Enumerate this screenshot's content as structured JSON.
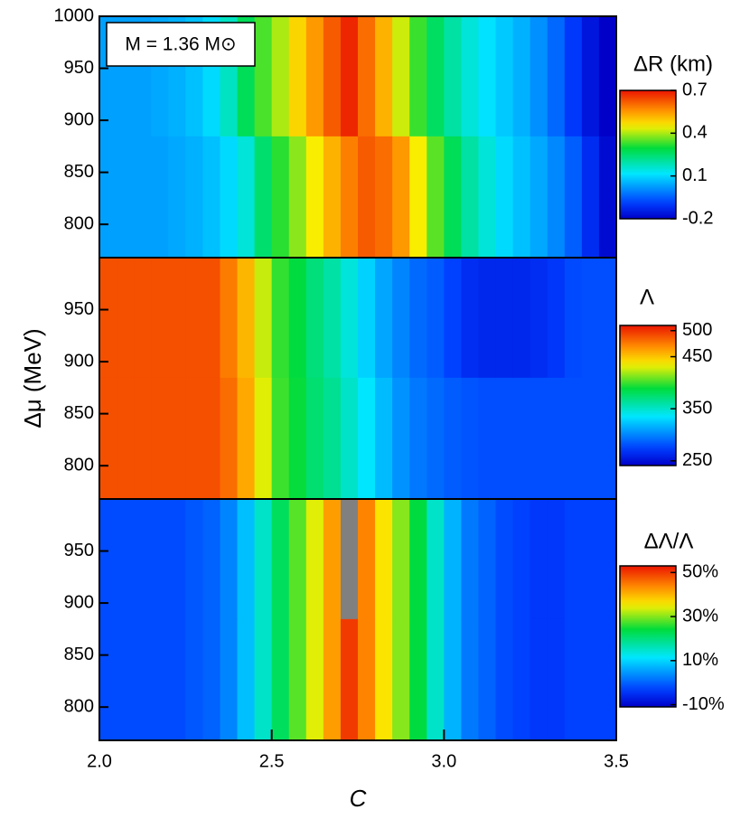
{
  "chart_data": [
    {
      "type": "heatmap",
      "annotation": "M = 1.36 M⊙",
      "colorbar_label": "ΔR (km)",
      "x": [
        2.0,
        2.05,
        2.1,
        2.15,
        2.2,
        2.25,
        2.3,
        2.35,
        2.4,
        2.45,
        2.5,
        2.55,
        2.6,
        2.65,
        2.7,
        2.75,
        2.8,
        2.85,
        2.9,
        2.95,
        3.0,
        3.05,
        3.1,
        3.15,
        3.2,
        3.25,
        3.3,
        3.35,
        3.4,
        3.45,
        3.5
      ],
      "y": [
        768,
        885,
        1000
      ],
      "z": [
        [
          0.03,
          0.03,
          0.03,
          0.03,
          0.04,
          0.05,
          0.07,
          0.1,
          0.15,
          0.25,
          0.32,
          0.38,
          0.45,
          0.52,
          0.58,
          0.62,
          0.6,
          0.55,
          0.45,
          0.35,
          0.27,
          0.2,
          0.15,
          0.1,
          0.07,
          0.04,
          0.0,
          -0.05,
          -0.12,
          -0.18
        ],
        [
          0.03,
          0.03,
          0.03,
          0.04,
          0.05,
          0.07,
          0.1,
          0.17,
          0.27,
          0.34,
          0.4,
          0.48,
          0.55,
          0.62,
          0.68,
          0.6,
          0.52,
          0.42,
          0.33,
          0.26,
          0.2,
          0.15,
          0.11,
          0.08,
          0.05,
          0.01,
          -0.04,
          -0.1,
          -0.16,
          -0.2
        ]
      ],
      "xlim": [
        2.0,
        3.5
      ],
      "ylim": [
        768,
        1000
      ],
      "yticks": [
        800,
        850,
        900,
        950,
        1000
      ],
      "zlim": [
        -0.2,
        0.7
      ],
      "zticks": [
        -0.2,
        0.1,
        0.4,
        0.7
      ]
    },
    {
      "type": "heatmap",
      "colorbar_label": "Λ",
      "ylabel": "Δμ (MeV)",
      "x": [
        2.0,
        2.05,
        2.1,
        2.15,
        2.2,
        2.25,
        2.3,
        2.35,
        2.4,
        2.45,
        2.5,
        2.55,
        2.6,
        2.65,
        2.7,
        2.75,
        2.8,
        2.85,
        2.9,
        2.95,
        3.0,
        3.05,
        3.1,
        3.15,
        3.2,
        3.25,
        3.3,
        3.35,
        3.4,
        3.45,
        3.5
      ],
      "y": [
        768,
        885,
        1000
      ],
      "z": [
        [
          490,
          490,
          490,
          490,
          490,
          490,
          490,
          480,
          460,
          430,
          400,
          390,
          375,
          365,
          350,
          335,
          320,
          305,
          295,
          290,
          285,
          282,
          280,
          280,
          280,
          280,
          280,
          280,
          280,
          280
        ],
        [
          490,
          490,
          490,
          490,
          490,
          490,
          490,
          475,
          455,
          425,
          398,
          388,
          372,
          360,
          345,
          328,
          312,
          300,
          290,
          285,
          275,
          265,
          262,
          262,
          262,
          265,
          270,
          278,
          280,
          280
        ]
      ],
      "xlim": [
        2.0,
        3.5
      ],
      "ylim": [
        768,
        1000
      ],
      "yticks": [
        800,
        850,
        900,
        950
      ],
      "zlim": [
        241,
        510
      ],
      "zticks": [
        250,
        350,
        450,
        500
      ]
    },
    {
      "type": "heatmap",
      "colorbar_label": "ΔΛ/Λ",
      "xlabel": "C",
      "x": [
        2.0,
        2.05,
        2.1,
        2.15,
        2.2,
        2.25,
        2.3,
        2.35,
        2.4,
        2.45,
        2.5,
        2.55,
        2.6,
        2.65,
        2.7,
        2.75,
        2.8,
        2.85,
        2.9,
        2.95,
        3.0,
        3.05,
        3.1,
        3.15,
        3.2,
        3.25,
        3.3,
        3.35,
        3.4,
        3.45,
        3.5
      ],
      "y": [
        768,
        885,
        1000
      ],
      "z": [
        [
          -2,
          -2,
          -2,
          -2,
          -2,
          -1,
          0,
          3,
          8,
          15,
          22,
          28,
          34,
          42,
          50,
          44,
          36,
          30,
          24,
          15,
          7,
          2,
          0,
          -2,
          -3,
          -4,
          -4,
          -3,
          -3,
          -3
        ],
        [
          -2,
          -2,
          -2,
          -2,
          -2,
          -1,
          0,
          3,
          8,
          15,
          22,
          28,
          34,
          42,
          56,
          44,
          36,
          30,
          24,
          15,
          7,
          2,
          0,
          -2,
          -3,
          -4,
          -4,
          -3,
          -3,
          -3
        ]
      ],
      "xlim": [
        2.0,
        3.5
      ],
      "ylim": [
        768,
        1000
      ],
      "yticks": [
        800,
        850,
        900,
        950
      ],
      "xticks": [
        {
          "value": 2.0,
          "label": "2.0"
        },
        2.5,
        {
          "value": 3.0,
          "label": "3.0"
        },
        3.5
      ],
      "zlim": [
        -11,
        53
      ],
      "zticks": [
        {
          "value": -10,
          "label": "-10%"
        },
        {
          "value": 10,
          "label": "10%"
        },
        {
          "value": 30,
          "label": "30%"
        },
        {
          "value": 50,
          "label": "50%"
        }
      ]
    }
  ]
}
